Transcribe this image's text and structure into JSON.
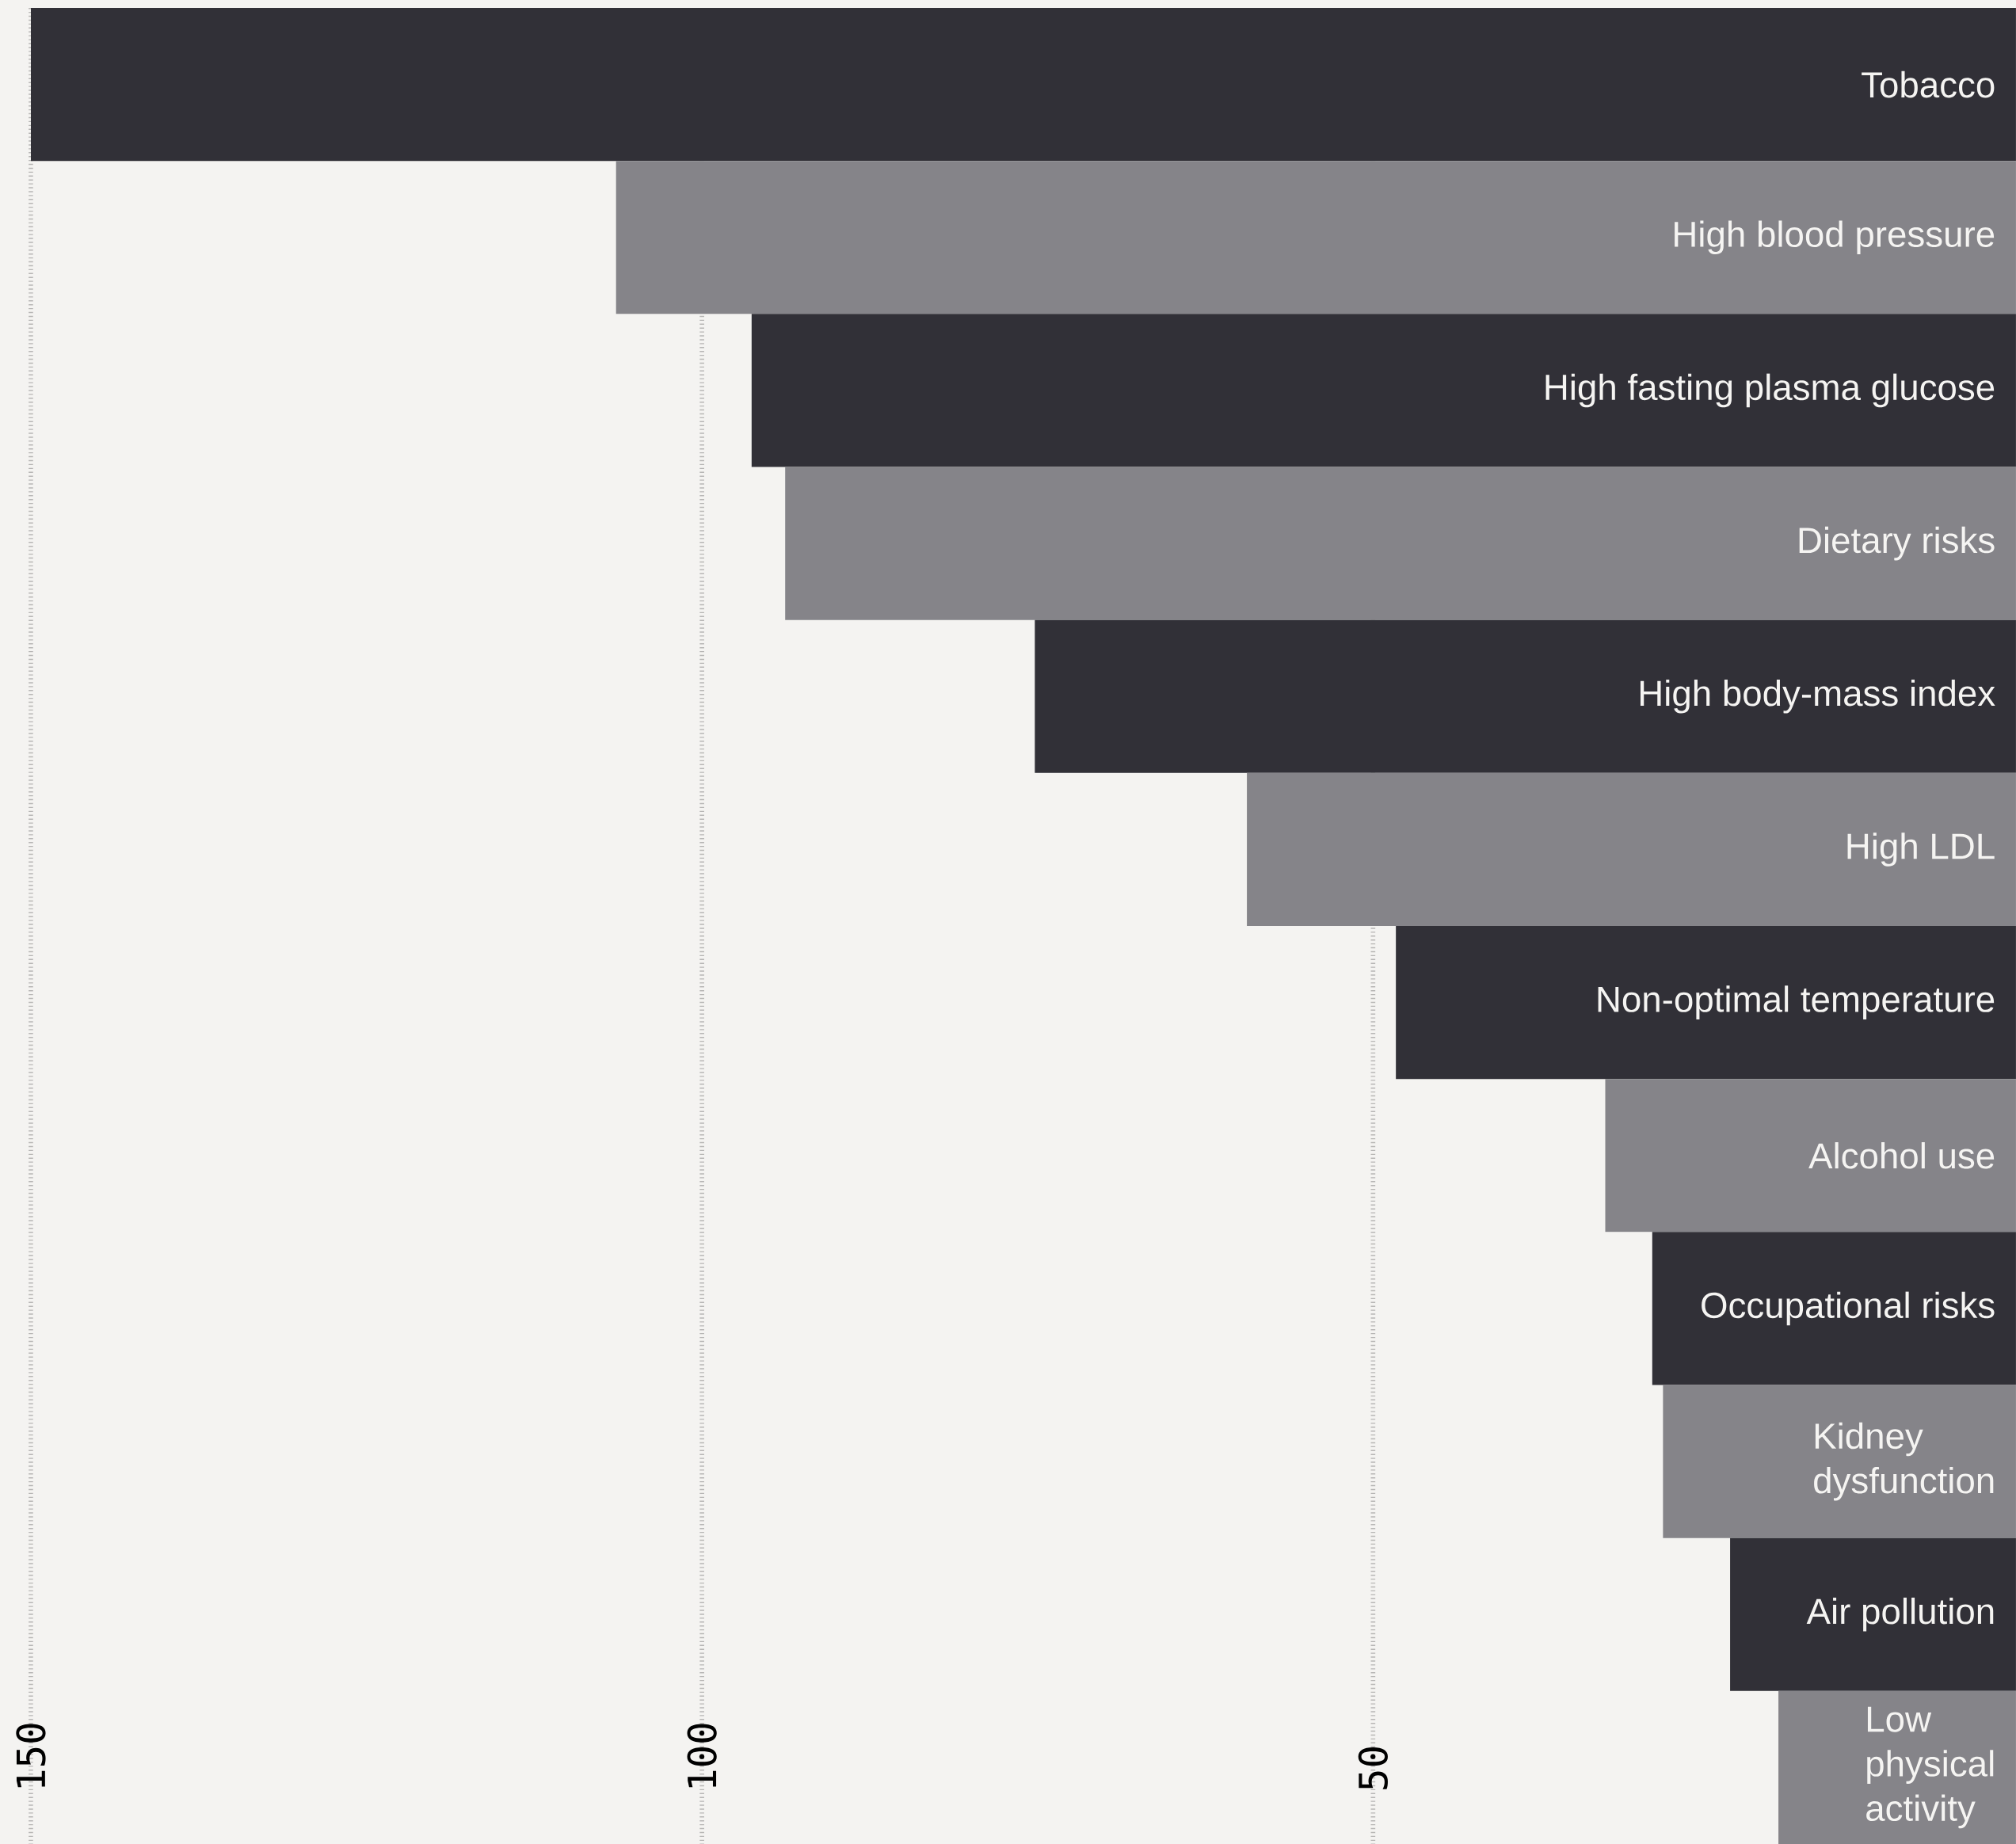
{
  "chart_data": {
    "type": "bar",
    "orientation": "horizontal",
    "categories": [
      "Tobacco",
      "High blood pressure",
      "High fasting plasma glucose",
      "Dietary risks",
      "High body-mass index",
      "High LDL",
      "Non-optimal temperature",
      "Alcohol use",
      "Occupational risks",
      "Kidney dysfunction",
      "Air pollution",
      "Low physical activity"
    ],
    "values": [
      150,
      106.4,
      96.3,
      93.8,
      75.2,
      59.4,
      48.3,
      32.7,
      29.2,
      28.4,
      23.4,
      19.8
    ],
    "colors": [
      "#313037",
      "#858489",
      "#313037",
      "#858489",
      "#313037",
      "#858489",
      "#313037",
      "#858489",
      "#313037",
      "#858489",
      "#313037",
      "#858489"
    ],
    "xlim": [
      152.3,
      2.1
    ],
    "xticks": [
      150,
      100,
      50
    ],
    "grid": "x"
  }
}
